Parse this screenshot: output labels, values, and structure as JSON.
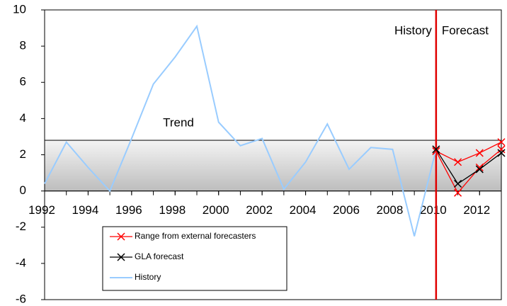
{
  "chart_data": {
    "type": "line",
    "annotations": {
      "trend": "Trend",
      "history": "History",
      "forecast": "Forecast"
    },
    "trend_band": [
      0,
      2.8
    ],
    "divider_x": 2010,
    "xlim": [
      1992,
      2013
    ],
    "xticks": [
      1992,
      1994,
      1996,
      1998,
      2000,
      2002,
      2004,
      2006,
      2008,
      2010,
      2012
    ],
    "ylim": [
      -6,
      10
    ],
    "yticks": [
      -6,
      -4,
      -2,
      0,
      2,
      4,
      6,
      8,
      10
    ],
    "series": [
      {
        "name": "Range from external forecasters",
        "color": "#ff0000",
        "x": [
          2010,
          2011,
          2012,
          2013
        ],
        "values": [
          2.2,
          1.6,
          2.1,
          2.7
        ],
        "low_values": [
          2.2,
          -0.1,
          1.3,
          2.3
        ]
      },
      {
        "name": "GLA forecast",
        "color": "#000000",
        "x": [
          2010,
          2011,
          2012,
          2013
        ],
        "values": [
          2.3,
          0.4,
          1.2,
          2.1
        ]
      },
      {
        "name": "History",
        "color": "#99ccff",
        "x": [
          1992,
          1993,
          1994,
          1995,
          1996,
          1997,
          1998,
          1999,
          2000,
          2001,
          2002,
          2003,
          2004,
          2005,
          2006,
          2007,
          2008,
          2009,
          2010
        ],
        "values": [
          0.4,
          2.7,
          1.3,
          0.0,
          2.9,
          5.9,
          7.4,
          9.1,
          3.8,
          2.5,
          2.9,
          0.1,
          1.6,
          3.7,
          1.2,
          2.4,
          2.3,
          -2.5,
          2.3
        ]
      }
    ]
  }
}
